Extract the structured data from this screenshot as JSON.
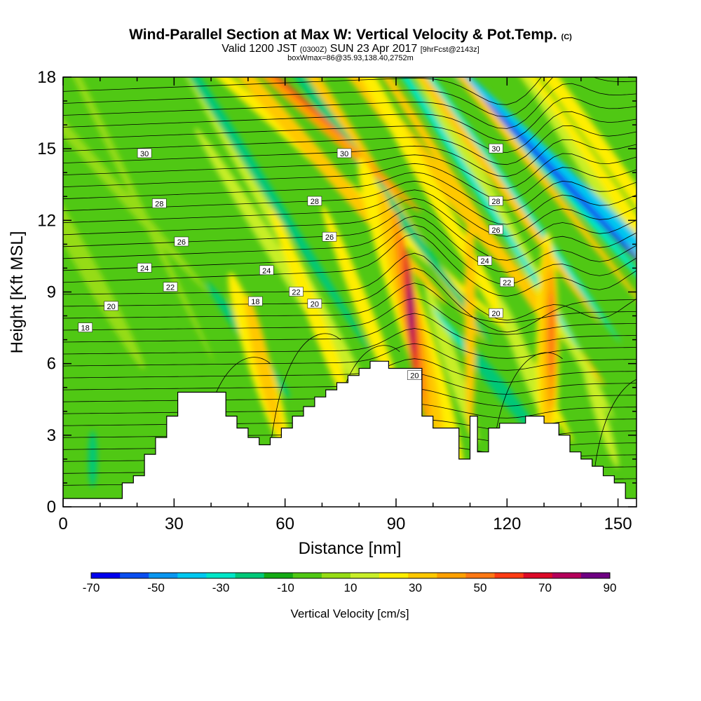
{
  "header": {
    "title": "Wind-Parallel Section at Max W: Vertical Velocity & Pot.Temp.",
    "title_tag": "(C)",
    "valid_prefix": "Valid 1200 JST",
    "valid_zulu": "(0300Z)",
    "valid_date": "SUN 23 Apr 2017",
    "forecast": "[9hrFcst@2143z]",
    "box_info": "boxWmax=86@35.93,138.40,2752m"
  },
  "chart_data": {
    "type": "heatmap",
    "xlabel": "Distance [nm]",
    "ylabel": "Height [Kft MSL]",
    "xlim": [
      0,
      155
    ],
    "ylim": [
      0,
      18
    ],
    "xticks": [
      0,
      30,
      60,
      90,
      120,
      150
    ],
    "yticks": [
      0,
      3,
      6,
      9,
      12,
      15,
      18
    ],
    "colorbar": {
      "label": "Vertical Velocity [cm/s]",
      "tick_labels": [
        "-70",
        "-50",
        "-30",
        "-10",
        "10",
        "30",
        "50",
        "70",
        "90"
      ],
      "colors": [
        "#0000ee",
        "#0a4ef0",
        "#0a96f0",
        "#00c8f0",
        "#00e6c8",
        "#00c878",
        "#14aa14",
        "#50c814",
        "#96dc14",
        "#c8ee28",
        "#ffee00",
        "#ffc800",
        "#ffa000",
        "#ff7814",
        "#ff3c14",
        "#dc0a28",
        "#b4005a",
        "#6e0082"
      ]
    },
    "terrain": [
      [
        0,
        0.35
      ],
      [
        16,
        0.35
      ],
      [
        16,
        1.0
      ],
      [
        19,
        1.0
      ],
      [
        19,
        1.3
      ],
      [
        22,
        1.3
      ],
      [
        22,
        2.2
      ],
      [
        25,
        2.2
      ],
      [
        25,
        2.9
      ],
      [
        28,
        2.9
      ],
      [
        28,
        3.8
      ],
      [
        31,
        3.8
      ],
      [
        31,
        4.8
      ],
      [
        44,
        4.8
      ],
      [
        44,
        3.8
      ],
      [
        47,
        3.8
      ],
      [
        47,
        3.3
      ],
      [
        50,
        3.3
      ],
      [
        50,
        2.9
      ],
      [
        53,
        2.9
      ],
      [
        53,
        2.6
      ],
      [
        56,
        2.6
      ],
      [
        56,
        2.9
      ],
      [
        59,
        2.9
      ],
      [
        59,
        3.3
      ],
      [
        62,
        3.3
      ],
      [
        62,
        3.8
      ],
      [
        65,
        3.8
      ],
      [
        65,
        4.2
      ],
      [
        68,
        4.2
      ],
      [
        68,
        4.6
      ],
      [
        71,
        4.6
      ],
      [
        71,
        4.9
      ],
      [
        74,
        4.9
      ],
      [
        74,
        5.2
      ],
      [
        77,
        5.2
      ],
      [
        77,
        5.5
      ],
      [
        80,
        5.5
      ],
      [
        80,
        5.8
      ],
      [
        83,
        5.8
      ],
      [
        83,
        6.1
      ],
      [
        88,
        6.1
      ],
      [
        88,
        5.8
      ],
      [
        97,
        5.8
      ],
      [
        97,
        3.8
      ],
      [
        100,
        3.8
      ],
      [
        100,
        3.3
      ],
      [
        107,
        3.3
      ],
      [
        107,
        2.0
      ],
      [
        110,
        2.0
      ],
      [
        110,
        3.8
      ],
      [
        112,
        3.8
      ],
      [
        112,
        2.3
      ],
      [
        115,
        2.3
      ],
      [
        115,
        3.3
      ],
      [
        118,
        3.3
      ],
      [
        118,
        3.5
      ],
      [
        125,
        3.5
      ],
      [
        125,
        3.8
      ],
      [
        130,
        3.8
      ],
      [
        130,
        3.5
      ],
      [
        134,
        3.5
      ],
      [
        134,
        3.0
      ],
      [
        137,
        3.0
      ],
      [
        137,
        2.3
      ],
      [
        140,
        2.3
      ],
      [
        140,
        2.0
      ],
      [
        143,
        2.0
      ],
      [
        143,
        1.7
      ],
      [
        146,
        1.7
      ],
      [
        146,
        1.3
      ],
      [
        149,
        1.3
      ],
      [
        149,
        1.0
      ],
      [
        152,
        1.0
      ],
      [
        152,
        0.35
      ],
      [
        155,
        0.35
      ]
    ],
    "contour_labels": [
      {
        "text": "30",
        "x": 22,
        "y": 14.8
      },
      {
        "text": "28",
        "x": 26,
        "y": 12.7
      },
      {
        "text": "26",
        "x": 32,
        "y": 11.1
      },
      {
        "text": "24",
        "x": 22,
        "y": 10.0
      },
      {
        "text": "22",
        "x": 29,
        "y": 9.2
      },
      {
        "text": "20",
        "x": 13,
        "y": 8.4
      },
      {
        "text": "18",
        "x": 6,
        "y": 7.5
      },
      {
        "text": "18",
        "x": 52,
        "y": 8.6
      },
      {
        "text": "24",
        "x": 55,
        "y": 9.9
      },
      {
        "text": "22",
        "x": 63,
        "y": 9.0
      },
      {
        "text": "20",
        "x": 68,
        "y": 8.5
      },
      {
        "text": "28",
        "x": 68,
        "y": 12.8
      },
      {
        "text": "26",
        "x": 72,
        "y": 11.3
      },
      {
        "text": "30",
        "x": 76,
        "y": 14.8
      },
      {
        "text": "30",
        "x": 117,
        "y": 15.0
      },
      {
        "text": "28",
        "x": 117,
        "y": 12.8
      },
      {
        "text": "26",
        "x": 117,
        "y": 11.6
      },
      {
        "text": "24",
        "x": 114,
        "y": 10.3
      },
      {
        "text": "22",
        "x": 120,
        "y": 9.4
      },
      {
        "text": "20",
        "x": 117,
        "y": 8.1
      },
      {
        "text": "20",
        "x": 95,
        "y": 5.5
      }
    ]
  }
}
